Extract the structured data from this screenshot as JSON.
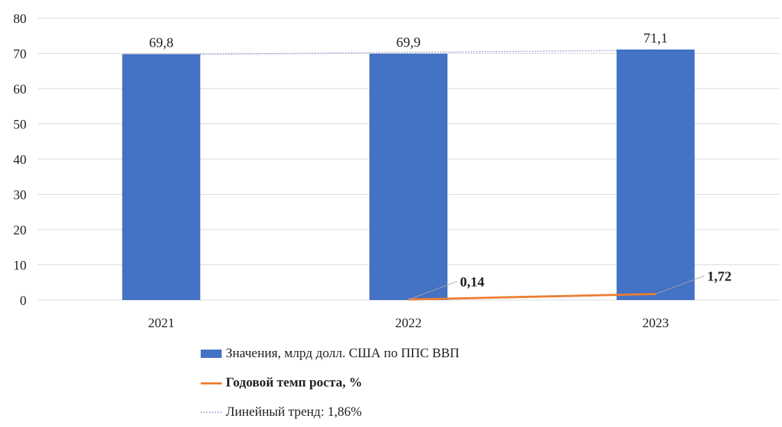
{
  "chart_data": {
    "type": "bar",
    "categories": [
      "2021",
      "2022",
      "2023"
    ],
    "series": [
      {
        "name": "Значения, млрд долл. США по ППС ВВП",
        "type": "bar",
        "values": [
          69.8,
          69.9,
          71.1
        ],
        "labels": [
          "69,8",
          "69,9",
          "71,1"
        ],
        "color": "#4472c4"
      },
      {
        "name": "Годовой темп роста, %",
        "type": "line",
        "values": [
          null,
          0.14,
          1.72
        ],
        "labels": [
          "",
          "0,14",
          "1,72"
        ],
        "color": "#ed7d31"
      },
      {
        "name": "Линейный тренд: 1,86%",
        "type": "trendline",
        "color": "#a8b8dc"
      }
    ],
    "ylim": [
      0,
      80
    ],
    "yticks": [
      0,
      10,
      20,
      30,
      40,
      50,
      60,
      70,
      80
    ],
    "grid": true,
    "legend_position": "bottom"
  }
}
